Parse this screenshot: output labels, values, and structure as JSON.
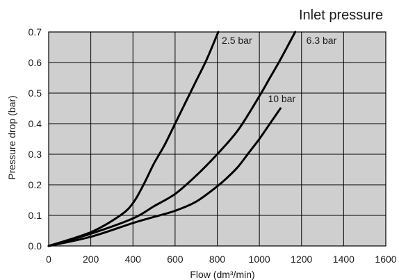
{
  "legend_title": "Inlet pressure",
  "chart_data": {
    "type": "line",
    "title": "",
    "xlabel": "Flow (dm³/min)",
    "ylabel": "Pressure drop (bar)",
    "xlim": [
      0,
      1600
    ],
    "ylim": [
      0,
      0.7
    ],
    "x_ticks": [
      "0",
      "200",
      "400",
      "600",
      "800",
      "1000",
      "1200",
      "1400",
      "1600"
    ],
    "y_ticks": [
      "0.0",
      "0.1",
      "0.2",
      "0.3",
      "0.4",
      "0.5",
      "0.6",
      "0.7"
    ],
    "grid": true,
    "background": "#cfcfcf",
    "line_color": "#000000",
    "series": [
      {
        "name": "2.5 bar",
        "x": [
          0,
          200,
          340,
          400,
          450,
          500,
          550,
          600,
          650,
          700,
          750,
          805
        ],
        "y": [
          0,
          0.045,
          0.1,
          0.14,
          0.2,
          0.27,
          0.33,
          0.4,
          0.47,
          0.54,
          0.61,
          0.7
        ]
      },
      {
        "name": "6.3 bar",
        "x": [
          0,
          200,
          400,
          500,
          600,
          700,
          800,
          900,
          1000,
          1050,
          1100,
          1170
        ],
        "y": [
          0,
          0.04,
          0.09,
          0.13,
          0.17,
          0.23,
          0.3,
          0.38,
          0.49,
          0.55,
          0.61,
          0.7
        ]
      },
      {
        "name": "10 bar",
        "x": [
          0,
          200,
          400,
          500,
          600,
          700,
          800,
          850,
          900,
          950,
          1000,
          1050,
          1100
        ],
        "y": [
          0,
          0.03,
          0.075,
          0.095,
          0.115,
          0.145,
          0.195,
          0.225,
          0.26,
          0.305,
          0.35,
          0.4,
          0.45
        ]
      }
    ]
  }
}
